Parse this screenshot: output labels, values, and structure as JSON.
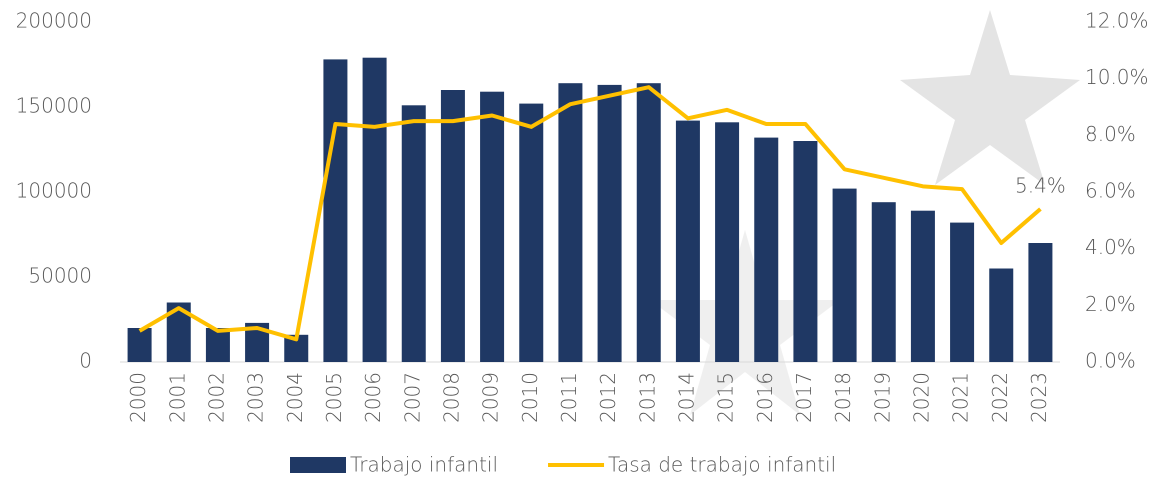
{
  "chart_data": {
    "type": "bar-line",
    "categories": [
      "2000",
      "2001",
      "2002",
      "2003",
      "2004",
      "2005",
      "2006",
      "2007",
      "2008",
      "2009",
      "2010",
      "2011",
      "2012",
      "2013",
      "2014",
      "2015",
      "2016",
      "2017",
      "2018",
      "2019",
      "2020",
      "2021",
      "2022",
      "2023"
    ],
    "series": [
      {
        "name": "Trabajo infantil",
        "type": "bar",
        "color": "#1f3864",
        "values": [
          20000,
          35000,
          20000,
          23000,
          16000,
          178000,
          179000,
          151000,
          160000,
          159000,
          152000,
          164000,
          163000,
          164000,
          142000,
          141000,
          132000,
          130000,
          102000,
          94000,
          89000,
          82000,
          55000,
          70000
        ]
      },
      {
        "name": "Tasa de trabajo infantil",
        "type": "line",
        "axis": "y2",
        "color": "#ffc000",
        "values": [
          1.1,
          1.9,
          1.1,
          1.2,
          0.8,
          8.4,
          8.3,
          8.5,
          8.5,
          8.7,
          8.3,
          9.1,
          9.4,
          9.7,
          8.6,
          8.9,
          8.4,
          8.4,
          6.8,
          6.5,
          6.2,
          6.1,
          4.2,
          5.4
        ],
        "value_labels": [
          null,
          null,
          null,
          null,
          null,
          null,
          null,
          null,
          null,
          null,
          null,
          null,
          null,
          null,
          null,
          null,
          null,
          null,
          null,
          null,
          null,
          null,
          null,
          "5.4%"
        ]
      }
    ],
    "ylim": [
      0,
      200000
    ],
    "yticks": [
      0,
      50000,
      100000,
      150000,
      200000
    ],
    "y2lim": [
      0,
      12
    ],
    "y2ticks": [
      {
        "value": 0,
        "label": "0.0%"
      },
      {
        "value": 2,
        "label": "2.0%"
      },
      {
        "value": 4,
        "label": "4.0%"
      },
      {
        "value": 6,
        "label": "6.0%"
      },
      {
        "value": 8,
        "label": "8.0%"
      },
      {
        "value": 10,
        "label": "10.0%"
      },
      {
        "value": 12,
        "label": "12.0%"
      }
    ],
    "legend": "bottom"
  }
}
